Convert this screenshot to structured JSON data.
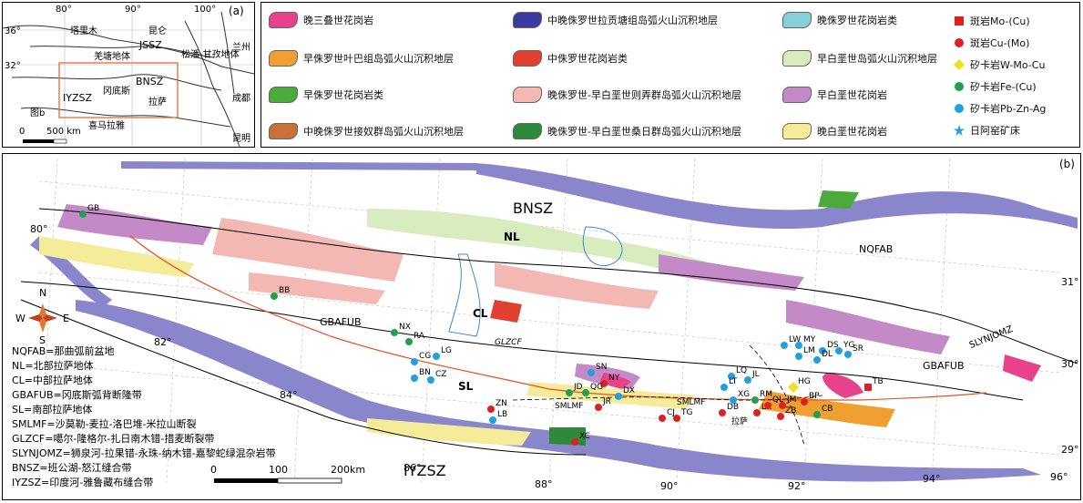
{
  "inset": {
    "panel_label": "(a)",
    "lon_ticks": [
      "80°",
      "90°",
      "100°"
    ],
    "lat_ticks": [
      "36°",
      "32°"
    ],
    "places": [
      "塔里木",
      "昆仑",
      "羌塘地体",
      "松潘-甘孜地体",
      "冈底斯",
      "喜马拉雅",
      "兰州",
      "成都",
      "昆明",
      "拉萨"
    ],
    "sutures": [
      "JSSZ",
      "BNSZ",
      "IYZSZ"
    ],
    "fig_ref": "图b",
    "scale_text": "500 km",
    "scale_zero": "0"
  },
  "legend": {
    "items": [
      {
        "label": "晚三叠世花岗岩",
        "color": "#e8428c"
      },
      {
        "label": "早侏罗世叶巴组岛弧火山沉积地层",
        "color": "#f0a030"
      },
      {
        "label": "早侏罗世花岗岩类",
        "color": "#4aaa3a"
      },
      {
        "label": "中晚侏罗世接奴群岛弧火山沉积地层",
        "color": "#c8703a"
      },
      {
        "label": "中晚侏罗世拉贡塘组岛弧火山沉积地层",
        "color": "#3a3aa0"
      },
      {
        "label": "中侏罗世花岗岩类",
        "color": "#e04030"
      },
      {
        "label": "晚侏罗世-早白垩世则弄群岛弧火山沉积地层",
        "color": "#f4b8b4"
      },
      {
        "label": "晚侏罗世-早白垩世桑日群岛弧火山沉积地层",
        "color": "#2e8a3a"
      },
      {
        "label": "晚侏罗世花岗岩类",
        "color": "#88d0d8"
      },
      {
        "label": "早白垩世岛弧火山沉积地层",
        "color": "#d8ecc0"
      },
      {
        "label": "早白垩世花岗岩",
        "color": "#c48ac8"
      },
      {
        "label": "晚白垩世花岗岩",
        "color": "#f4ec98"
      }
    ],
    "mineral": [
      {
        "label": "斑岩Mo-(Cu)",
        "symbol": "square",
        "color": "#e02020"
      },
      {
        "label": "斑岩Cu-(Mo)",
        "symbol": "circle",
        "color": "#e02020"
      },
      {
        "label": "矽卡岩W-Mo-Cu",
        "symbol": "diamond",
        "color": "#f0e020"
      },
      {
        "label": "矽卡岩Fe-(Cu)",
        "symbol": "circle",
        "color": "#20a050"
      },
      {
        "label": "矽卡岩Pb-Zn-Ag",
        "symbol": "circle",
        "color": "#20a0e0"
      },
      {
        "label": "日阿窑矿床",
        "symbol": "star",
        "color": "#20a0e0"
      }
    ]
  },
  "main": {
    "panel_label": "(b)",
    "terranes": [
      "BNSZ",
      "NL",
      "CL",
      "SL",
      "NQFAB",
      "GBAFUB",
      "GBAFUB",
      "SLYNJOMZ",
      "IYZSZ",
      "GLZCF",
      "SMLMF",
      "SMLMF"
    ],
    "lon_ticks": [
      "80°",
      "82°",
      "84°",
      "86°",
      "88°",
      "90°",
      "92°",
      "94°",
      "96°"
    ],
    "lat_ticks": [
      "31°",
      "30°",
      "29°"
    ],
    "scale": {
      "zero": "0",
      "mid": "100",
      "end": "200km"
    },
    "deposits": [
      {
        "code": "GB",
        "type": "fe"
      },
      {
        "code": "BB",
        "type": "fe"
      },
      {
        "code": "NX",
        "type": "fe"
      },
      {
        "code": "RA",
        "type": "fe"
      },
      {
        "code": "CG",
        "type": "pb"
      },
      {
        "code": "LG",
        "type": "pb"
      },
      {
        "code": "BN",
        "type": "pb"
      },
      {
        "code": "CZ",
        "type": "pb"
      },
      {
        "code": "ZN",
        "type": "cu"
      },
      {
        "code": "LB",
        "type": "pb"
      },
      {
        "code": "SN",
        "type": "pb"
      },
      {
        "code": "NY",
        "type": "cu"
      },
      {
        "code": "JD",
        "type": "fe"
      },
      {
        "code": "QG",
        "type": "fe"
      },
      {
        "code": "DX",
        "type": "pb"
      },
      {
        "code": "XC",
        "type": "cu"
      },
      {
        "code": "JR",
        "type": "cu"
      },
      {
        "code": "CJ",
        "type": "cu"
      },
      {
        "code": "TG",
        "type": "cu"
      },
      {
        "code": "LQ",
        "type": "pb"
      },
      {
        "code": "JL",
        "type": "pb"
      },
      {
        "code": "LT",
        "type": "pb"
      },
      {
        "code": "XG",
        "type": "pb"
      },
      {
        "code": "RM",
        "type": "fe"
      },
      {
        "code": "DB",
        "type": "cu"
      },
      {
        "code": "LK",
        "type": "cu"
      },
      {
        "code": "QL",
        "type": "cu"
      },
      {
        "code": "JM",
        "type": "cu"
      },
      {
        "code": "ZB",
        "type": "cu"
      },
      {
        "code": "CB",
        "type": "fe"
      },
      {
        "code": "BP",
        "type": "cu"
      },
      {
        "code": "HG",
        "type": "wmo"
      },
      {
        "code": "TB",
        "type": "mo"
      },
      {
        "code": "LW",
        "type": "pb"
      },
      {
        "code": "MY",
        "type": "pb"
      },
      {
        "code": "DS",
        "type": "pb"
      },
      {
        "code": "YG",
        "type": "pb"
      },
      {
        "code": "LM",
        "type": "pb"
      },
      {
        "code": "DL",
        "type": "pb"
      },
      {
        "code": "SR",
        "type": "pb"
      }
    ],
    "city": "拉萨",
    "abbreviations": [
      "NQFAB=那曲弧前盆地",
      "NL=北部拉萨地体",
      "CL=中部拉萨地体",
      "GBAFUB=冈底斯弧背断隆带",
      "SL=南部拉萨地体",
      "SMLMF=沙莫勒-麦拉-洛巴堆-米拉山断裂",
      "GLZCF=噶尔-隆格尔-扎日南木错-措麦断裂带",
      "SLYNJOMZ=狮泉河-拉果错-永珠-纳木错-嘉黎蛇绿混杂岩带",
      "BNSZ=班公湖-怒江缝合带",
      "IYZSZ=印度河-雅鲁藏布缝合带"
    ],
    "compass": {
      "n": "N",
      "s": "S",
      "e": "E",
      "w": "W"
    }
  }
}
